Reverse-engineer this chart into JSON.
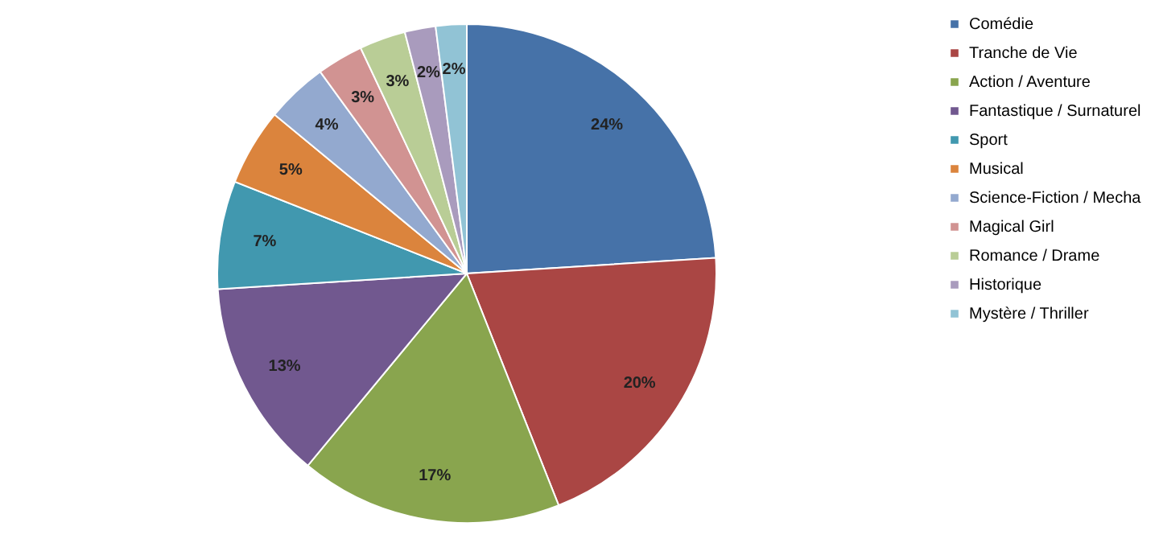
{
  "chart_data": {
    "type": "pie",
    "categories": [
      "Comédie",
      "Tranche de Vie",
      "Action / Aventure",
      "Fantastique / Surnaturel",
      "Sport",
      "Musical",
      "Science-Fiction / Mecha",
      "Magical Girl",
      "Romance / Drame",
      "Historique",
      "Mystère / Thriller"
    ],
    "values": [
      24,
      20,
      17,
      13,
      7,
      5,
      4,
      3,
      3,
      2,
      2
    ],
    "value_labels": [
      "24%",
      "20%",
      "17%",
      "13%",
      "7%",
      "5%",
      "4%",
      "3%",
      "3%",
      "2%",
      "2%"
    ],
    "colors": [
      "#4672a8",
      "#aa4644",
      "#89a54e",
      "#71588f",
      "#4198af",
      "#db843d",
      "#93a9cf",
      "#d19392",
      "#b9cd96",
      "#a99bbd",
      "#91c3d5"
    ],
    "legend": "right"
  }
}
